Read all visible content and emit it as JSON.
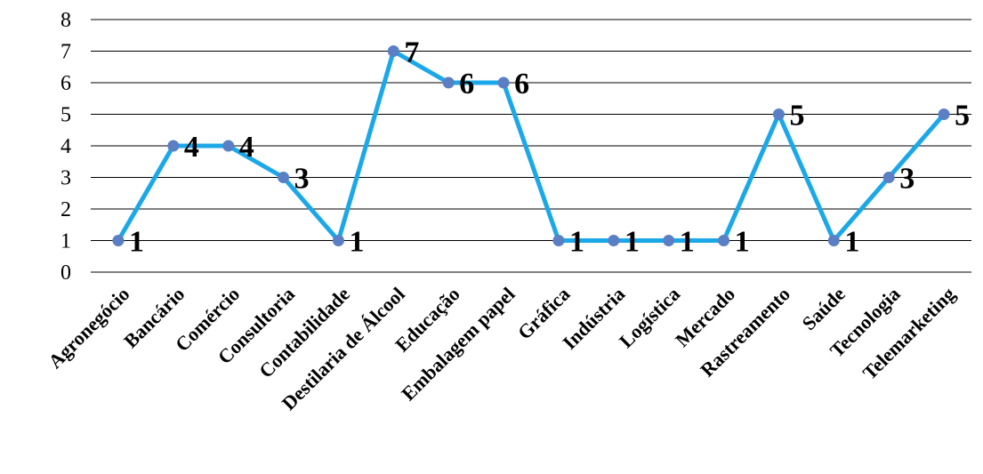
{
  "chart_data": {
    "type": "line",
    "title": "",
    "xlabel": "",
    "ylabel": "",
    "ylim": [
      0,
      8
    ],
    "yticks": [
      0,
      1,
      2,
      3,
      4,
      5,
      6,
      7,
      8
    ],
    "grid": true,
    "legend": "none",
    "line_color": "#1BA8E8",
    "marker_color": "#5B7FC4",
    "categories": [
      "Agronegócio",
      "Bancário",
      "Comércio",
      "Consultoria",
      "Contabilidade",
      "Destilaria de Álcool",
      "Educação",
      "Embalagem papel",
      "Gráfica",
      "Indústria",
      "Logística",
      "Mercado",
      "Rastreamento",
      "Saúde",
      "Tecnologia",
      "Telemarketing"
    ],
    "values": [
      1,
      4,
      4,
      3,
      1,
      7,
      6,
      6,
      1,
      1,
      1,
      1,
      5,
      1,
      3,
      5
    ],
    "data_labels": [
      "1",
      "4",
      "4",
      "3",
      "1",
      "7",
      "6",
      "6",
      "1",
      "1",
      "1",
      "1",
      "5",
      "1",
      "3",
      "5"
    ],
    "data_label_visible": [
      true,
      true,
      true,
      true,
      true,
      true,
      true,
      true,
      true,
      true,
      true,
      true,
      true,
      true,
      true,
      true
    ]
  }
}
